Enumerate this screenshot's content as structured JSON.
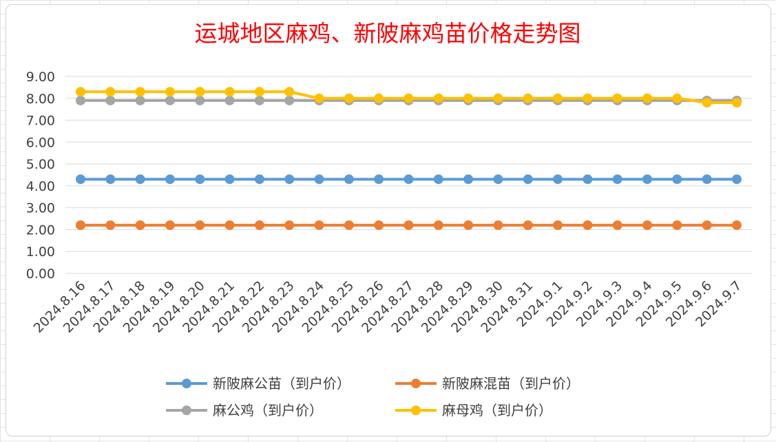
{
  "chart_data": {
    "type": "line",
    "title": "运城地区麻鸡、新陂麻鸡苗价格走势图",
    "xlabel": "",
    "ylabel": "",
    "ylim": [
      0,
      9
    ],
    "y_ticks": [
      "0.00",
      "1.00",
      "2.00",
      "3.00",
      "4.00",
      "5.00",
      "6.00",
      "7.00",
      "8.00",
      "9.00"
    ],
    "grid": true,
    "legend_position": "bottom",
    "categories": [
      "2024.8.16",
      "2024.8.17",
      "2024.8.18",
      "2024.8.19",
      "2024.8.20",
      "2024.8.21",
      "2024.8.22",
      "2024.8.23",
      "2024.8.24",
      "2024.8.25",
      "2024.8.26",
      "2024.8.27",
      "2024.8.28",
      "2024.8.29",
      "2024.8.30",
      "2024.8.31",
      "2024.9.1",
      "2024.9.2",
      "2024.9.3",
      "2024.9.4",
      "2024.9.5",
      "2024.9.6",
      "2024.9.7"
    ],
    "series": [
      {
        "name": "新陂麻公苗（到户价）",
        "color": "#5b9bd5",
        "values": [
          4.3,
          4.3,
          4.3,
          4.3,
          4.3,
          4.3,
          4.3,
          4.3,
          4.3,
          4.3,
          4.3,
          4.3,
          4.3,
          4.3,
          4.3,
          4.3,
          4.3,
          4.3,
          4.3,
          4.3,
          4.3,
          4.3,
          4.3
        ]
      },
      {
        "name": "新陂麻混苗（到户价）",
        "color": "#ed7d31",
        "values": [
          2.2,
          2.2,
          2.2,
          2.2,
          2.2,
          2.2,
          2.2,
          2.2,
          2.2,
          2.2,
          2.2,
          2.2,
          2.2,
          2.2,
          2.2,
          2.2,
          2.2,
          2.2,
          2.2,
          2.2,
          2.2,
          2.2,
          2.2
        ]
      },
      {
        "name": "麻公鸡（到户价）",
        "color": "#a5a5a5",
        "values": [
          7.9,
          7.9,
          7.9,
          7.9,
          7.9,
          7.9,
          7.9,
          7.9,
          7.9,
          7.9,
          7.9,
          7.9,
          7.9,
          7.9,
          7.9,
          7.9,
          7.9,
          7.9,
          7.9,
          7.9,
          7.9,
          7.9,
          7.9
        ]
      },
      {
        "name": "麻母鸡（到户价）",
        "color": "#ffc000",
        "values": [
          8.3,
          8.3,
          8.3,
          8.3,
          8.3,
          8.3,
          8.3,
          8.3,
          8.0,
          8.0,
          8.0,
          8.0,
          8.0,
          8.0,
          8.0,
          8.0,
          8.0,
          8.0,
          8.0,
          8.0,
          8.0,
          7.8,
          7.8
        ]
      }
    ],
    "title_color": "#ff0000"
  }
}
